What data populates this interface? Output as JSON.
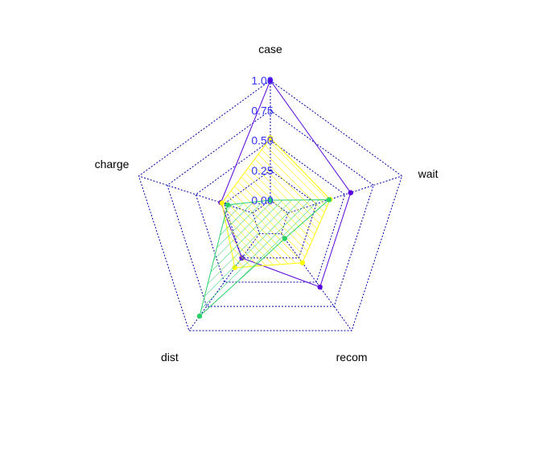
{
  "chart_data": {
    "type": "radar",
    "axes": [
      "case",
      "wait",
      "recom",
      "dist",
      "charge"
    ],
    "ticks": [
      "0.00",
      "0.25",
      "0.50",
      "0.75",
      "1.00"
    ],
    "range": [
      0,
      1
    ],
    "grid": true,
    "series": [
      {
        "values": [
          1.0,
          0.55,
          0.55,
          0.25,
          0.28
        ],
        "color": "#5a00dd",
        "fill": "none"
      },
      {
        "values": [
          0.52,
          0.37,
          0.3,
          0.35,
          0.27
        ],
        "color": "#ffff00",
        "fill": "hatch"
      },
      {
        "values": [
          0.0,
          0.36,
          0.05,
          0.85,
          0.22
        ],
        "color": "#2ad16a",
        "fill": "hatch"
      }
    ],
    "colors": {
      "grid": "#0000aa",
      "tick_label": "#3333ff"
    }
  }
}
